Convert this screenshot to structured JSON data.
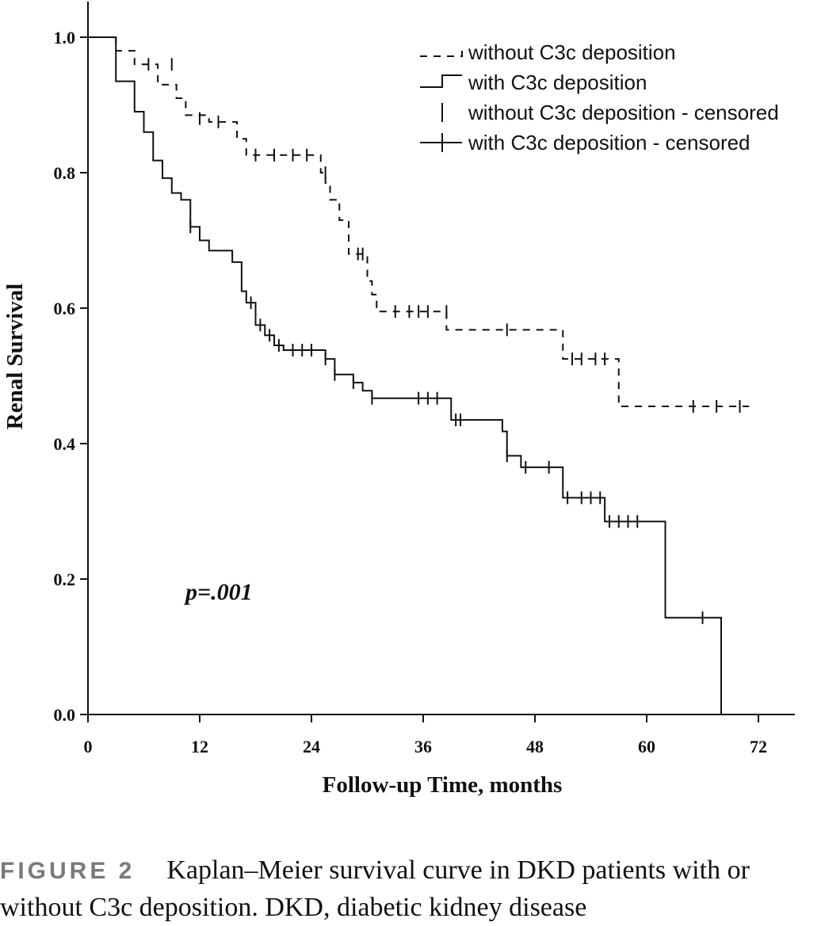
{
  "chart_data": {
    "type": "line",
    "subtype": "kaplan-meier-step",
    "xlabel": "Follow-up Time, months",
    "ylabel": "Renal Survival",
    "xlim": [
      0,
      75
    ],
    "ylim": [
      0,
      1.05
    ],
    "x_ticks": [
      0,
      12,
      24,
      36,
      48,
      60,
      72
    ],
    "y_ticks": [
      "0.0",
      "0.2",
      "0.4",
      "0.6",
      "0.8",
      "1.0"
    ],
    "grid": false,
    "legend_position": "top-right",
    "annotation": "p=.001",
    "series": [
      {
        "name": "without C3c deposition",
        "censored_name": "without C3c deposition - censored",
        "line_style": "dashed",
        "steps": [
          [
            0,
            1.0
          ],
          [
            3,
            0.98
          ],
          [
            5,
            0.96
          ],
          [
            7.5,
            0.93
          ],
          [
            9.5,
            0.91
          ],
          [
            10.5,
            0.885
          ],
          [
            13,
            0.875
          ],
          [
            16,
            0.85
          ],
          [
            17,
            0.826
          ],
          [
            25,
            0.8
          ],
          [
            25.5,
            0.785
          ],
          [
            26,
            0.76
          ],
          [
            27,
            0.73
          ],
          [
            28,
            0.68
          ],
          [
            30,
            0.64
          ],
          [
            30.5,
            0.62
          ],
          [
            31,
            0.595
          ],
          [
            38.5,
            0.568
          ],
          [
            51,
            0.525
          ],
          [
            57,
            0.455
          ],
          [
            71,
            0.455
          ]
        ],
        "censored": [
          [
            6.5,
            0.96
          ],
          [
            9,
            0.96
          ],
          [
            12,
            0.88
          ],
          [
            14,
            0.875
          ],
          [
            18,
            0.826
          ],
          [
            20,
            0.826
          ],
          [
            22,
            0.826
          ],
          [
            23.5,
            0.826
          ],
          [
            25.5,
            0.8
          ],
          [
            29,
            0.68
          ],
          [
            29.5,
            0.68
          ],
          [
            33,
            0.595
          ],
          [
            34.5,
            0.595
          ],
          [
            35.5,
            0.595
          ],
          [
            36.5,
            0.595
          ],
          [
            38.5,
            0.595
          ],
          [
            45,
            0.568
          ],
          [
            52,
            0.525
          ],
          [
            53,
            0.525
          ],
          [
            54.5,
            0.525
          ],
          [
            55.5,
            0.525
          ],
          [
            65,
            0.455
          ],
          [
            67.5,
            0.455
          ],
          [
            70,
            0.455
          ]
        ]
      },
      {
        "name": "with C3c deposition",
        "censored_name": "with C3c deposition - censored",
        "line_style": "solid",
        "steps": [
          [
            0,
            1.0
          ],
          [
            3,
            0.935
          ],
          [
            5,
            0.89
          ],
          [
            6,
            0.86
          ],
          [
            7,
            0.818
          ],
          [
            8,
            0.792
          ],
          [
            9,
            0.77
          ],
          [
            10,
            0.76
          ],
          [
            11,
            0.72
          ],
          [
            12,
            0.7
          ],
          [
            13,
            0.685
          ],
          [
            15.5,
            0.668
          ],
          [
            16.5,
            0.625
          ],
          [
            17,
            0.608
          ],
          [
            18,
            0.575
          ],
          [
            19,
            0.56
          ],
          [
            20,
            0.545
          ],
          [
            21,
            0.538
          ],
          [
            25.5,
            0.525
          ],
          [
            26.5,
            0.502
          ],
          [
            28.5,
            0.49
          ],
          [
            29.5,
            0.478
          ],
          [
            30.5,
            0.467
          ],
          [
            39,
            0.435
          ],
          [
            44.5,
            0.418
          ],
          [
            45,
            0.382
          ],
          [
            46.5,
            0.365
          ],
          [
            51,
            0.32
          ],
          [
            55.5,
            0.285
          ],
          [
            62,
            0.143
          ],
          [
            68,
            0.0
          ]
        ],
        "censored": [
          [
            11,
            0.72
          ],
          [
            17.5,
            0.608
          ],
          [
            18.5,
            0.575
          ],
          [
            19.5,
            0.56
          ],
          [
            20.5,
            0.545
          ],
          [
            22,
            0.538
          ],
          [
            23,
            0.538
          ],
          [
            24,
            0.538
          ],
          [
            25.5,
            0.525
          ],
          [
            26.5,
            0.502
          ],
          [
            28.5,
            0.49
          ],
          [
            30.5,
            0.467
          ],
          [
            35.5,
            0.467
          ],
          [
            36.5,
            0.467
          ],
          [
            37.5,
            0.467
          ],
          [
            39.5,
            0.435
          ],
          [
            40,
            0.435
          ],
          [
            45,
            0.382
          ],
          [
            47,
            0.365
          ],
          [
            49.5,
            0.365
          ],
          [
            51.5,
            0.32
          ],
          [
            53,
            0.32
          ],
          [
            54,
            0.32
          ],
          [
            55,
            0.32
          ],
          [
            56,
            0.285
          ],
          [
            57,
            0.285
          ],
          [
            58,
            0.285
          ],
          [
            59,
            0.285
          ],
          [
            66,
            0.143
          ]
        ]
      }
    ]
  },
  "caption": {
    "label": "FIGURE 2",
    "text": "Kaplan–Meier survival curve in DKD patients with or without C3c deposition. DKD, diabetic kidney disease"
  },
  "colors": {
    "ink": "#111111",
    "caption_label": "#7a7a7a"
  }
}
